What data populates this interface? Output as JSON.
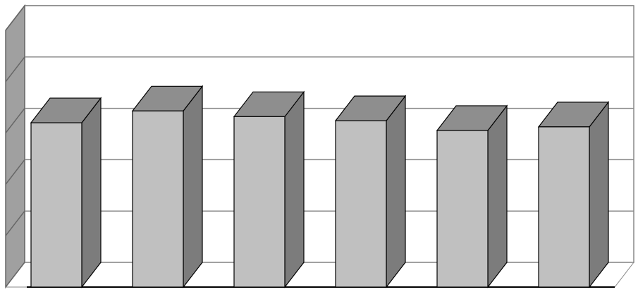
{
  "chart_data": {
    "type": "bar3d",
    "categories": [
      null,
      null,
      null,
      null,
      null,
      null
    ],
    "values": [
      3.2,
      3.43,
      3.32,
      3.24,
      3.05,
      3.12
    ],
    "color": "#c0c0c0",
    "ylim": [
      0,
      5
    ],
    "yticks": [
      0,
      1,
      2,
      3,
      4,
      5
    ],
    "grid": true
  }
}
